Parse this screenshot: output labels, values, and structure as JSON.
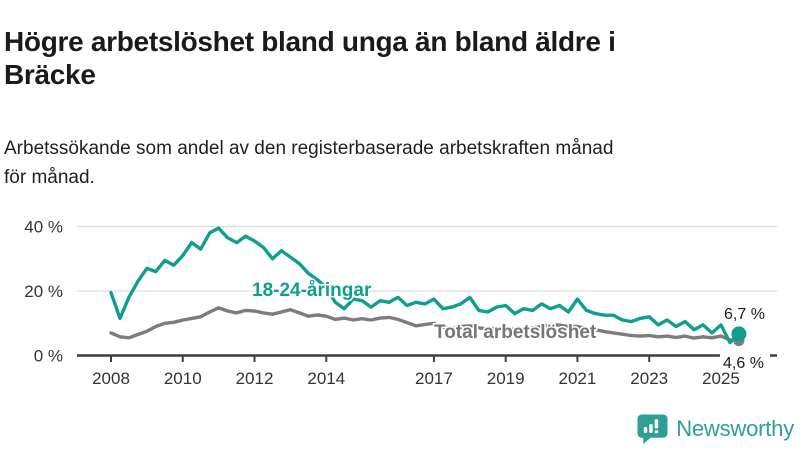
{
  "header": {
    "title": "Högre arbetslöshet bland unga än bland äldre i Bräcke",
    "title_lines": [
      "Högre arbetslöshet bland unga än bland äldre i",
      "Bräcke"
    ],
    "subtitle_lines": [
      "Arbetssökande som andel av den registerbaserade arbetskraften månad",
      "för månad."
    ]
  },
  "branding": {
    "logo_text": "Newsworthy",
    "logo_color": "#2d9f94",
    "logo_icon": "speech-bubble-bar-chart-icon"
  },
  "colors": {
    "accent_teal": "#109e8f",
    "series_gray": "#7c7c7c",
    "gridline": "#dcdcdc",
    "axis": "#3d3d3d",
    "text": "#1a1a1a"
  },
  "chart_data": {
    "type": "line",
    "title": "Högre arbetslöshet bland unga än bland äldre i Bräcke",
    "subtitle": "Arbetssökande som andel av den registerbaserade arbetskraften månad för månad.",
    "xlabel": "",
    "ylabel": "",
    "x_start": 2008.0,
    "x_step": 0.25,
    "x_range": [
      2008.0,
      2025.5
    ],
    "ylim": [
      0,
      44
    ],
    "grid": "horizontal",
    "legend_position": "inline-labels",
    "x_ticks": [
      "2008",
      "2010",
      "2012",
      "2014",
      "2017",
      "2019",
      "2021",
      "2023",
      "2025"
    ],
    "y_ticks": [
      {
        "value": 0,
        "label": "0 %"
      },
      {
        "value": 20,
        "label": "20 %"
      },
      {
        "value": 40,
        "label": "40 %"
      }
    ],
    "series": [
      {
        "name": "Total arbetslöshet",
        "color": "#7c7c7c",
        "end_label": "4,6 %",
        "end_value": 4.6,
        "values": [
          7.0,
          5.8,
          5.5,
          6.5,
          7.5,
          9.0,
          10.0,
          10.3,
          11.0,
          11.5,
          12.0,
          13.5,
          14.8,
          13.8,
          13.2,
          14.0,
          13.8,
          13.2,
          12.8,
          13.5,
          14.2,
          13.2,
          12.2,
          12.6,
          12.2,
          11.2,
          11.6,
          11.0,
          11.4,
          11.0,
          11.6,
          11.8,
          11.2,
          10.2,
          9.2,
          9.6,
          10.0,
          8.8,
          8.4,
          9.0,
          9.2,
          8.6,
          8.2,
          8.6,
          8.6,
          8.0,
          8.2,
          8.6,
          9.0,
          9.6,
          9.4,
          9.0,
          9.0,
          8.4,
          8.0,
          7.4,
          7.0,
          6.6,
          6.2,
          6.0,
          6.2,
          5.8,
          6.0,
          5.6,
          6.0,
          5.4,
          5.8,
          5.5,
          6.0,
          4.8,
          4.6
        ]
      },
      {
        "name": "18-24-åringar",
        "color": "#109e8f",
        "end_label": "6,7 %",
        "end_value": 6.7,
        "values": [
          19.5,
          11.5,
          18.0,
          23.0,
          27.0,
          26.0,
          29.5,
          28.0,
          31.0,
          35.0,
          33.0,
          38.0,
          39.5,
          36.5,
          35.0,
          37.0,
          35.5,
          33.5,
          30.0,
          32.5,
          30.5,
          28.5,
          25.5,
          23.5,
          21.0,
          16.5,
          14.5,
          17.5,
          17.0,
          15.0,
          17.0,
          16.5,
          18.0,
          15.5,
          16.5,
          16.0,
          17.5,
          14.5,
          15.0,
          16.0,
          18.0,
          14.0,
          13.5,
          15.0,
          15.5,
          13.0,
          14.5,
          14.0,
          16.0,
          14.5,
          15.5,
          13.5,
          17.5,
          14.0,
          13.0,
          12.5,
          12.5,
          11.0,
          10.5,
          11.5,
          12.0,
          9.5,
          11.0,
          9.0,
          10.5,
          8.0,
          9.5,
          7.0,
          9.5,
          4.0,
          6.7
        ]
      }
    ]
  }
}
